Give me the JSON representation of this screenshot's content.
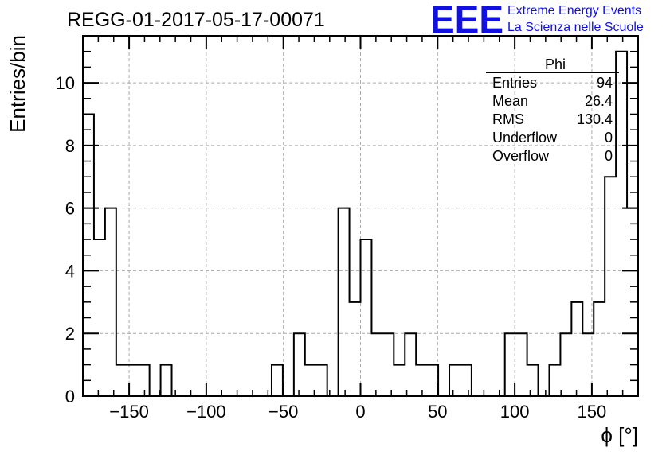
{
  "header": {
    "title": "REGG-01-2017-05-17-00071",
    "brand_logo": "EEE",
    "brand_line1": "Extreme Energy Events",
    "brand_line2": "La Scienza nelle Scuole",
    "brand_color": "#1010e0"
  },
  "stats_box": {
    "name": "Phi",
    "rows": [
      {
        "label": "Entries",
        "value": "94"
      },
      {
        "label": "Mean",
        "value": "26.4"
      },
      {
        "label": "RMS",
        "value": "130.4"
      },
      {
        "label": "Underflow",
        "value": "0"
      },
      {
        "label": "Overflow",
        "value": "0"
      }
    ]
  },
  "chart_data": {
    "type": "bar",
    "histogram": "step",
    "xlabel": "ϕ [°]",
    "ylabel": "Entries/bin",
    "xlim": [
      -180,
      180
    ],
    "ylim": [
      0,
      11.5
    ],
    "grid": true,
    "bin_width": 7.2,
    "x_ticks": [
      -150,
      -100,
      -50,
      0,
      50,
      100,
      150
    ],
    "y_ticks": [
      0,
      2,
      4,
      6,
      8,
      10
    ],
    "values": [
      9,
      5,
      6,
      1,
      1,
      1,
      0,
      1,
      0,
      0,
      0,
      0,
      0,
      0,
      0,
      0,
      0,
      1,
      0,
      2,
      1,
      1,
      0,
      6,
      3,
      5,
      2,
      2,
      1,
      2,
      1,
      1,
      0,
      1,
      1,
      0,
      0,
      0,
      2,
      2,
      1,
      0,
      1,
      2,
      3,
      2,
      3,
      7,
      11,
      6
    ]
  }
}
